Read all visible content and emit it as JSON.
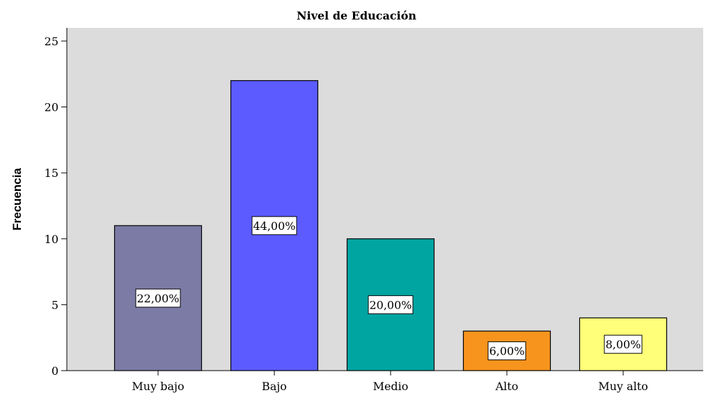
{
  "chart_data": {
    "type": "bar",
    "title": "Nivel de Educación",
    "xlabel": "",
    "ylabel": "Frecuencia",
    "ylim": [
      0,
      26
    ],
    "yticks": [
      0,
      5,
      10,
      15,
      20,
      25
    ],
    "categories": [
      "Muy bajo",
      "Bajo",
      "Medio",
      "Alto",
      "Muy alto"
    ],
    "values": [
      11,
      22,
      10,
      3,
      4
    ],
    "data_labels": [
      "22,00%",
      "44,00%",
      "20,00%",
      "6,00%",
      "8,00%"
    ],
    "colors": [
      "#7b7ba6",
      "#5b5bff",
      "#00a5a2",
      "#f7941d",
      "#ffff7a"
    ],
    "plot_background": "#dcdcdc",
    "grid": false,
    "legend": "none"
  }
}
